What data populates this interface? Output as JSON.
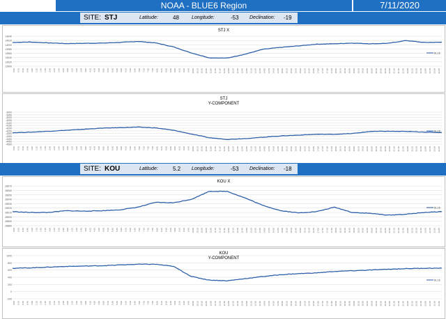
{
  "header": {
    "title": "NOAA - BLUE6 Region",
    "date": "7/11/2020"
  },
  "sites": [
    {
      "site_label": "SITE:",
      "site": "STJ",
      "latitude_label": "Latitude:",
      "latitude": "48",
      "longitude_label": "Longitude:",
      "longitude": "-53",
      "declination_label": "Declination:",
      "declination": "-19"
    },
    {
      "site_label": "SITE:",
      "site": "KOU",
      "latitude_label": "Latitude:",
      "latitude": "5.2",
      "longitude_label": "Longitude:",
      "longitude": "-53",
      "declination_label": "Declination:",
      "declination": "-18"
    }
  ],
  "chart_data": [
    {
      "type": "line",
      "title": "STJ X",
      "ylim": [
        13900,
        14050
      ],
      "yticks": [
        "13900",
        "13920",
        "13940",
        "13960",
        "13980",
        "14000",
        "14020",
        "14040"
      ],
      "legend": "BLUE",
      "legend_position": "right",
      "color": "#2e5fa8",
      "series": [
        {
          "x": [
            0,
            1,
            2,
            3,
            4,
            5,
            6,
            7,
            8,
            9,
            10,
            11,
            12,
            13,
            14,
            15,
            16,
            17,
            18,
            19,
            20,
            21,
            22,
            23,
            24
          ],
          "values": [
            14011,
            14013,
            14009,
            14006,
            14007,
            14008,
            14011,
            14016,
            14009,
            13990,
            13962,
            13939,
            13938,
            13956,
            13979,
            13988,
            13995,
            14003,
            14005,
            14008,
            14005,
            14007,
            14020,
            14011,
            14012
          ]
        }
      ]
    },
    {
      "type": "line",
      "title": "STJ Y-COMPONENT",
      "ylim": [
        -4500,
        -3900
      ],
      "yticks": [
        "-4500",
        "-4450",
        "-4400",
        "-4350",
        "-4300",
        "-4250",
        "-4200",
        "-4150",
        "-4100",
        "-4050",
        "-4000",
        "-3950",
        "-3900"
      ],
      "legend": "BLUE",
      "legend_position": "right",
      "color": "#2e5fa8",
      "series": [
        {
          "x": [
            0,
            1,
            2,
            3,
            4,
            5,
            6,
            7,
            8,
            9,
            10,
            11,
            12,
            13,
            14,
            15,
            16,
            17,
            18,
            19,
            20,
            21,
            22,
            23,
            24
          ],
          "values": [
            -4285,
            -4275,
            -4258,
            -4240,
            -4220,
            -4200,
            -4190,
            -4180,
            -4195,
            -4240,
            -4310,
            -4380,
            -4410,
            -4395,
            -4370,
            -4345,
            -4330,
            -4315,
            -4315,
            -4300,
            -4262,
            -4258,
            -4262,
            -4272,
            -4282
          ]
        }
      ]
    },
    {
      "type": "line",
      "title": "KOU X",
      "ylim": [
        28880,
        28975
      ],
      "yticks": [
        "28880",
        "28890",
        "28900",
        "28910",
        "28920",
        "28930",
        "28940",
        "28950",
        "28960",
        "28970"
      ],
      "legend": "BLUE",
      "legend_position": "right",
      "color": "#2e5fa8",
      "series": [
        {
          "x": [
            0,
            1,
            2,
            3,
            4,
            5,
            6,
            7,
            8,
            9,
            10,
            11,
            12,
            13,
            14,
            15,
            16,
            17,
            18,
            19,
            20,
            21,
            22,
            23,
            24
          ],
          "values": [
            28912,
            28910,
            28910,
            28914,
            28913,
            28914,
            28916,
            28922,
            28933,
            28932,
            28940,
            28958,
            28958,
            28943,
            28926,
            28914,
            28909,
            28912,
            28922,
            28910,
            28908,
            28904,
            28906,
            28910,
            28912
          ]
        }
      ]
    },
    {
      "type": "line",
      "title": "KOU Y-COMPONENT",
      "ylim": [
        -200,
        1000
      ],
      "yticks": [
        "-200",
        "0",
        "200",
        "400",
        "600",
        "800",
        "1000"
      ],
      "legend": "BLUE",
      "legend_position": "right",
      "color": "#2e5fa8",
      "series": [
        {
          "x": [
            0,
            1,
            2,
            3,
            4,
            5,
            6,
            7,
            8,
            9,
            10,
            11,
            12,
            13,
            14,
            15,
            16,
            17,
            18,
            19,
            20,
            21,
            22,
            23,
            24
          ],
          "values": [
            650,
            660,
            680,
            700,
            710,
            720,
            740,
            760,
            760,
            700,
            420,
            320,
            300,
            360,
            420,
            470,
            500,
            520,
            560,
            580,
            600,
            620,
            640,
            650,
            650
          ]
        }
      ]
    }
  ]
}
